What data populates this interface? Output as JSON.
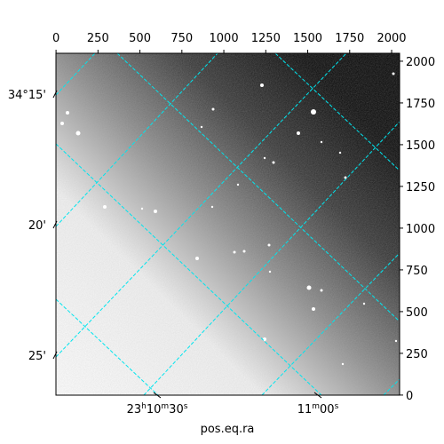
{
  "chart_data": {
    "type": "image",
    "xlabel": "pos.eq.ra",
    "xlim": [
      -0.5,
      2047.5
    ],
    "ylim": [
      -0.5,
      2047.5
    ],
    "xticks": [
      0,
      250,
      500,
      750,
      1000,
      1250,
      1500,
      1750,
      2000
    ],
    "yticks": [
      0,
      250,
      500,
      750,
      1000,
      1250,
      1500,
      1750,
      2000
    ],
    "dec_ticks": [
      "34°15'",
      "20'",
      "25'"
    ],
    "ra_ticks": [
      [
        "23",
        "h",
        "10",
        "m",
        "30",
        "s"
      ],
      [
        "11",
        "m",
        "00",
        "s"
      ]
    ],
    "grid_color": "#00e5ee"
  }
}
